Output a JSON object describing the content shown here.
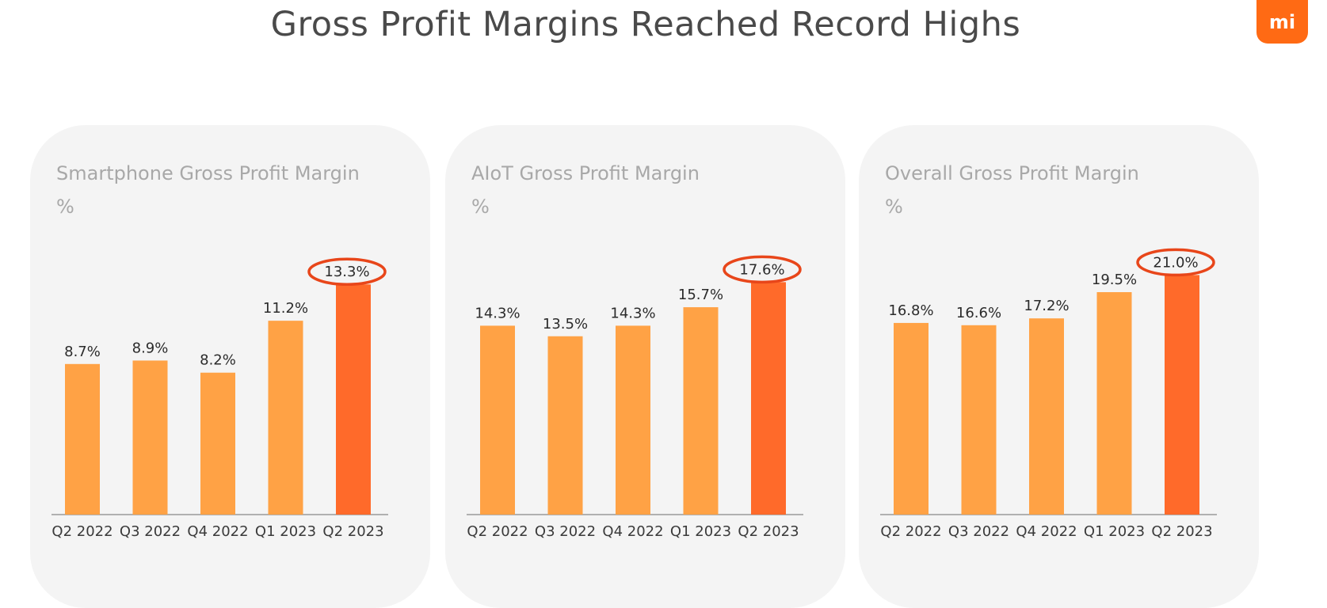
{
  "title": "Gross Profit Margins Reached Record Highs",
  "logo_text": "mi",
  "colors": {
    "bar": "#ffa245",
    "highlight_bar": "#ff6a2a",
    "highlight_ring": "#e8461a",
    "axis": "#9a9a9a",
    "panel_bg": "#f4f4f4"
  },
  "chart_data": [
    {
      "type": "bar",
      "title": "Smartphone Gross Profit Margin",
      "ylabel": "%",
      "categories": [
        "Q2 2022",
        "Q3 2022",
        "Q4 2022",
        "Q1 2023",
        "Q2 2023"
      ],
      "values": [
        8.7,
        8.9,
        8.2,
        11.2,
        13.3
      ],
      "labels": [
        "8.7%",
        "8.9%",
        "8.2%",
        "11.2%",
        "13.3%"
      ],
      "ylim": [
        0,
        14.5
      ],
      "highlight_index": 4
    },
    {
      "type": "bar",
      "title": "AIoT Gross Profit Margin",
      "ylabel": "%",
      "categories": [
        "Q2 2022",
        "Q3 2022",
        "Q4 2022",
        "Q1 2023",
        "Q2 2023"
      ],
      "values": [
        14.3,
        13.5,
        14.3,
        15.7,
        17.6
      ],
      "labels": [
        "14.3%",
        "13.5%",
        "14.3%",
        "15.7%",
        "17.6%"
      ],
      "ylim": [
        0,
        19.0
      ],
      "highlight_index": 4
    },
    {
      "type": "bar",
      "title": "Overall Gross Profit Margin",
      "ylabel": "%",
      "categories": [
        "Q2 2022",
        "Q3 2022",
        "Q4 2022",
        "Q1 2023",
        "Q2 2023"
      ],
      "values": [
        16.8,
        16.6,
        17.2,
        19.5,
        21.0
      ],
      "labels": [
        "16.8%",
        "16.6%",
        "17.2%",
        "19.5%",
        "21.0%"
      ],
      "ylim": [
        0,
        22.0
      ],
      "highlight_index": 4
    }
  ]
}
